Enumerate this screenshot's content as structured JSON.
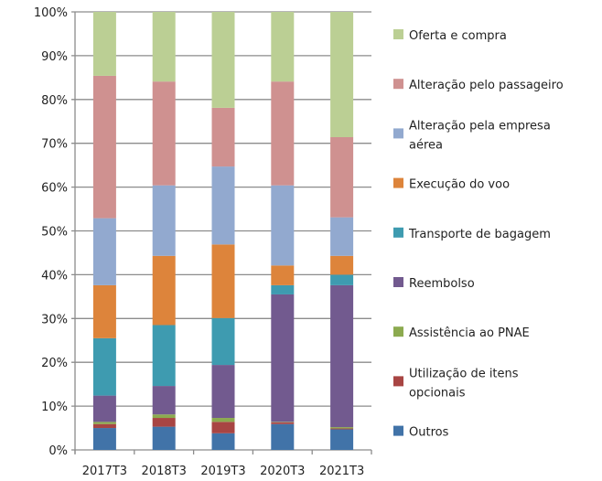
{
  "chart_data": {
    "type": "bar",
    "stacked": "percent",
    "categories": [
      "2017T3",
      "2018T3",
      "2019T3",
      "2020T3",
      "2021T3"
    ],
    "ylim": [
      0,
      100
    ],
    "yticks": [
      "0%",
      "10%",
      "20%",
      "30%",
      "40%",
      "50%",
      "60%",
      "70%",
      "80%",
      "90%",
      "100%"
    ],
    "grid": true,
    "legend_placement": "right",
    "series": [
      {
        "name": "Outros",
        "color": "#4173a8",
        "values": [
          5.0,
          5.3,
          3.8,
          5.9,
          4.7
        ]
      },
      {
        "name": "Utilização de itens opcionais",
        "color": "#a84543",
        "values": [
          0.9,
          2.0,
          2.6,
          0.4,
          0.2
        ]
      },
      {
        "name": "Assistência ao PNAE",
        "color": "#8caa4f",
        "values": [
          0.5,
          0.8,
          0.9,
          0.1,
          0.3
        ]
      },
      {
        "name": "Reembolso",
        "color": "#725a8f",
        "values": [
          6.0,
          6.5,
          12.1,
          29.1,
          32.4
        ]
      },
      {
        "name": "Transporte de bagagem",
        "color": "#3e9bb0",
        "values": [
          13.1,
          13.9,
          10.7,
          2.1,
          2.4
        ]
      },
      {
        "name": "Execução do voo",
        "color": "#dd843b",
        "values": [
          12.1,
          15.8,
          16.8,
          4.5,
          4.3
        ]
      },
      {
        "name": "Alteração pela empresa aérea",
        "color": "#92a9cf",
        "values": [
          15.3,
          16.1,
          17.8,
          18.3,
          8.8
        ]
      },
      {
        "name": "Alteração pelo passageiro",
        "color": "#cf9190",
        "values": [
          32.5,
          23.7,
          13.4,
          23.7,
          18.3
        ]
      },
      {
        "name": "Oferta e compra",
        "color": "#bbcf94",
        "values": [
          14.6,
          15.9,
          21.9,
          15.9,
          28.6
        ]
      }
    ],
    "legend_lines": {
      "Alteração pela empresa aérea": [
        "Alteração pela empresa",
        "aérea"
      ],
      "Utilização de itens opcionais": [
        "Utilização de itens",
        "opcionais"
      ]
    }
  }
}
